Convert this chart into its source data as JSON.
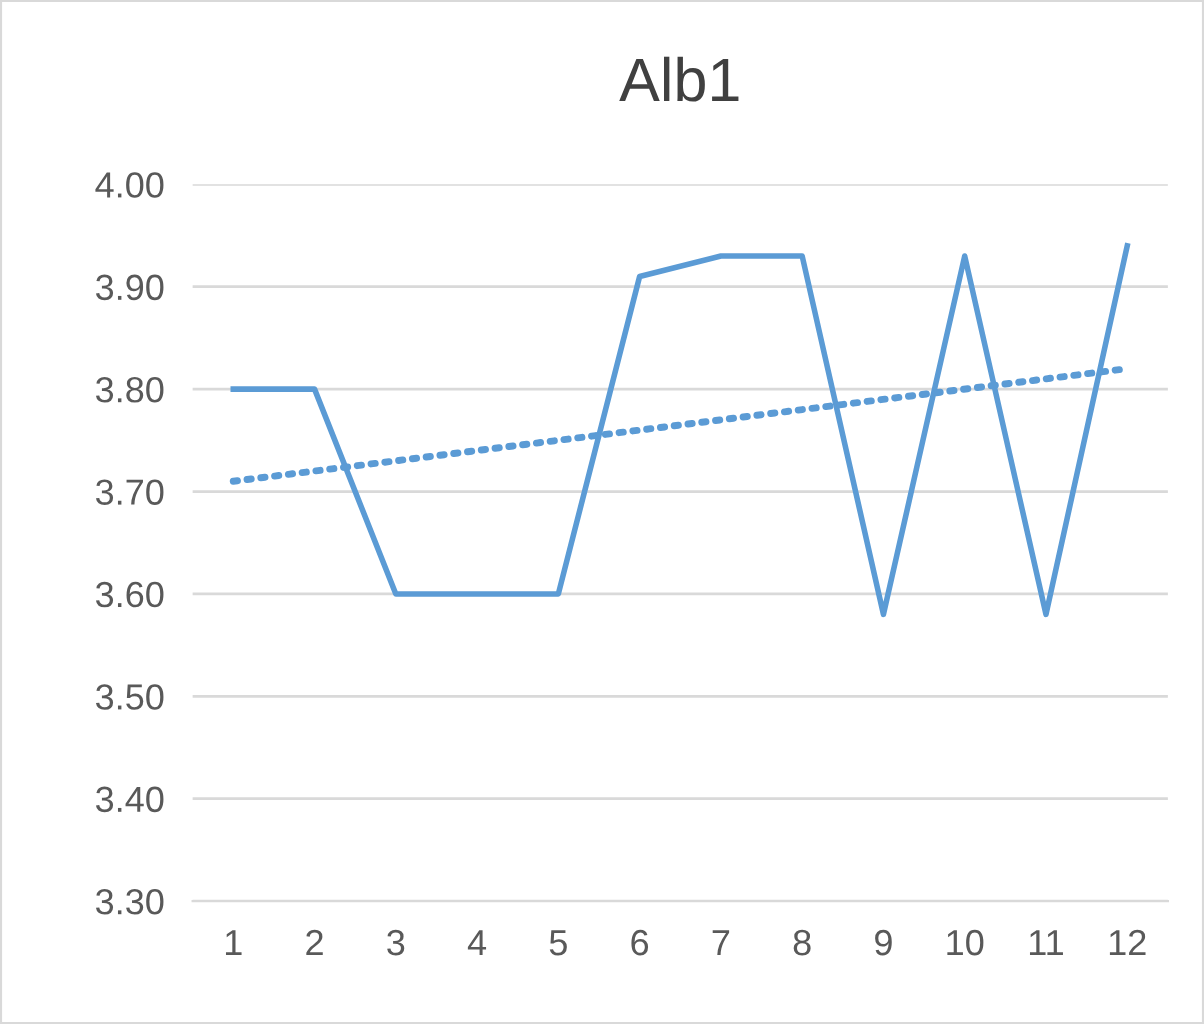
{
  "chart_data": {
    "type": "line",
    "title": "Alb1",
    "categories": [
      "1",
      "2",
      "3",
      "4",
      "5",
      "6",
      "7",
      "8",
      "9",
      "10",
      "11",
      "12"
    ],
    "series": [
      {
        "color": "#5b9bd5",
        "values": [
          3.8,
          3.8,
          3.6,
          3.6,
          3.6,
          3.91,
          3.93,
          3.93,
          3.58,
          3.93,
          3.58,
          3.94
        ]
      },
      {
        "type": "line",
        "color": "#5b9bd5",
        "line_style": "dotted",
        "x": [
          "1",
          "12"
        ],
        "values": [
          3.71,
          3.82
        ]
      }
    ],
    "ylim": [
      3.3,
      4.0
    ],
    "yticks": [
      {
        "value": 3.3,
        "label": "3.30"
      },
      {
        "value": 3.4,
        "label": "3.40"
      },
      {
        "value": 3.5,
        "label": "3.50"
      },
      {
        "value": 3.6,
        "label": "3.60"
      },
      {
        "value": 3.7,
        "label": "3.70"
      },
      {
        "value": 3.8,
        "label": "3.80"
      },
      {
        "value": 3.9,
        "label": "3.90"
      },
      {
        "value": 4.0,
        "label": "4.00"
      }
    ],
    "grid": "y",
    "legend": false,
    "marker": "none",
    "line_style": "solid"
  }
}
